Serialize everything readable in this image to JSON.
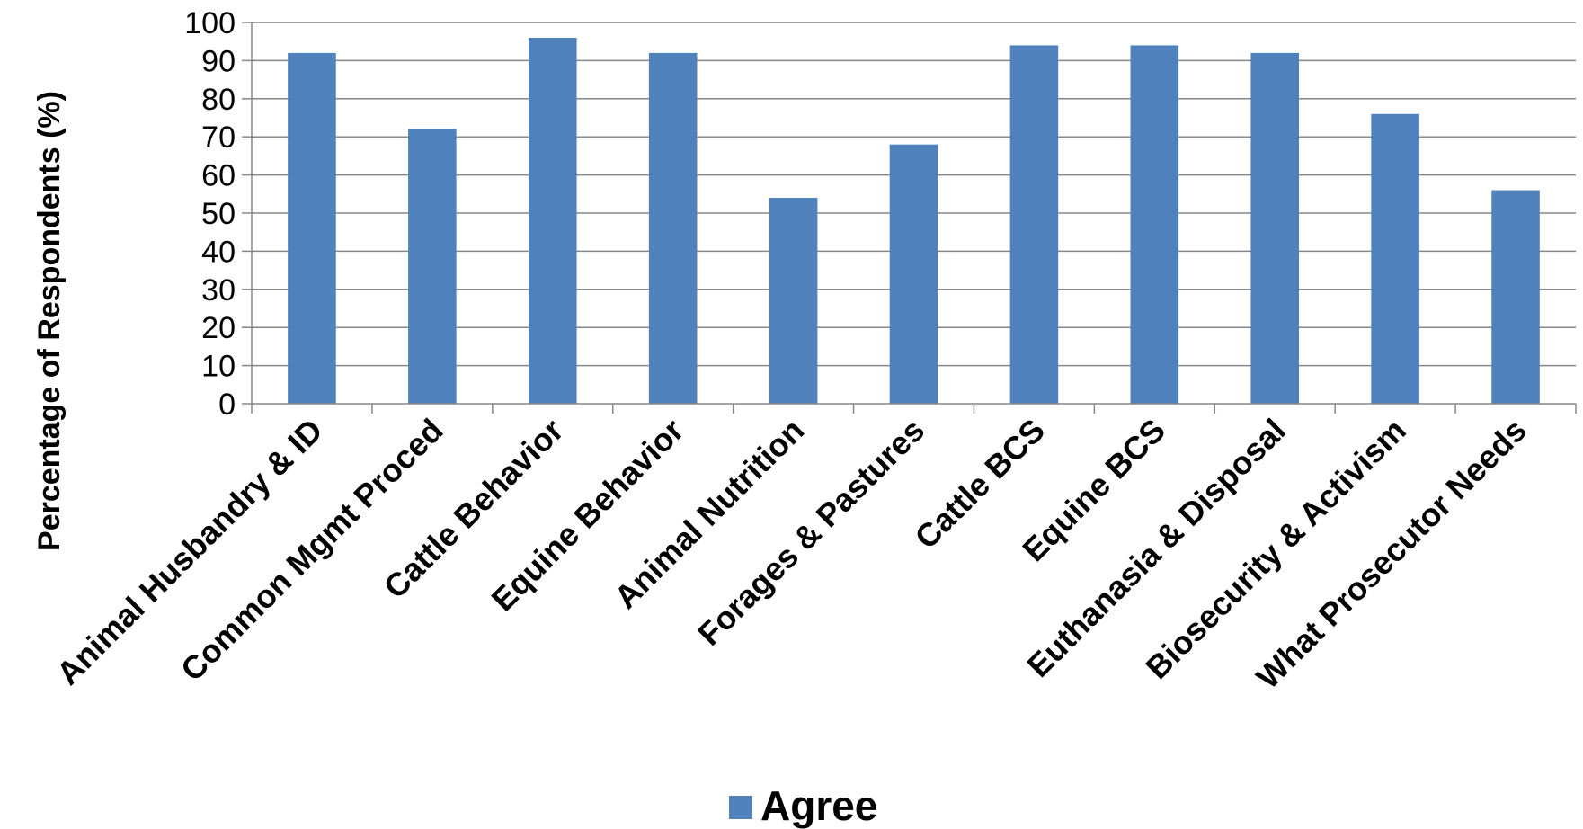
{
  "chart_data": {
    "type": "bar",
    "title": "",
    "xlabel": "",
    "ylabel": "Percentage of Respondents (%)",
    "ylim": [
      0,
      100
    ],
    "yticks": [
      0,
      10,
      20,
      30,
      40,
      50,
      60,
      70,
      80,
      90,
      100
    ],
    "grid": true,
    "legend_position": "bottom",
    "categories": [
      "Animal Husbandry & ID",
      "Common Mgmt Proced",
      "Cattle Behavior",
      "Equine Behavior",
      "Animal Nutrition",
      "Forages & Pastures",
      "Cattle BCS",
      "Equine BCS",
      "Euthanasia & Disposal",
      "Biosecurity & Activism",
      "What Prosecutor Needs"
    ],
    "series": [
      {
        "name": "Agree",
        "color": "#4F81BD",
        "values": [
          92,
          72,
          96,
          92,
          54,
          68,
          94,
          94,
          92,
          76,
          56
        ]
      }
    ]
  }
}
